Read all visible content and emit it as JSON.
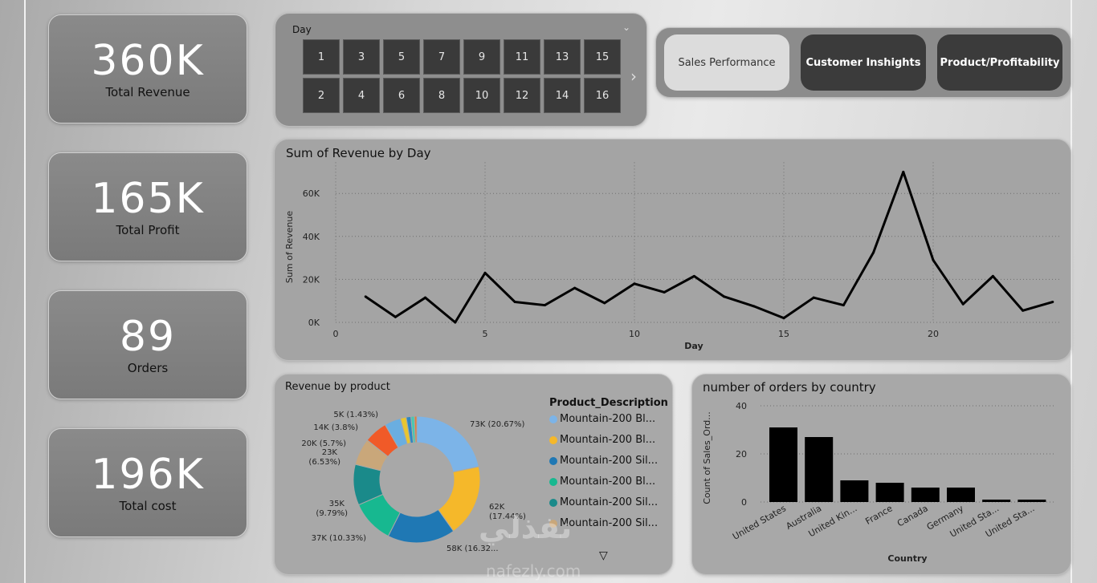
{
  "kpis": [
    {
      "value": "360K",
      "label": "Total Revenue"
    },
    {
      "value": "165K",
      "label": "Total Profit"
    },
    {
      "value": "89",
      "label": "Orders"
    },
    {
      "value": "196K",
      "label": "Total cost"
    }
  ],
  "slicer": {
    "title": "Day",
    "row1": [
      "1",
      "3",
      "5",
      "7",
      "9",
      "11",
      "13",
      "15"
    ],
    "row2": [
      "2",
      "4",
      "6",
      "8",
      "10",
      "12",
      "14",
      "16"
    ]
  },
  "nav": {
    "sales": "Sales Performance",
    "customer": "Customer Inshights",
    "product": "Product/Profitability"
  },
  "watermark": {
    "logo": "نفذلي",
    "url": "nafezly.com"
  },
  "icons": {
    "dropdown": "chevron-down-icon",
    "next": "chevron-right-icon",
    "more": "expand-triangle-icon"
  },
  "colors": {
    "kpi": "#7f7f7f",
    "button_dark": "#3b3b3b",
    "button_active": "#dcdcdc"
  },
  "charts": [
    {
      "chart_data": {
        "type": "line",
        "title": "Sum of Revenue by Day",
        "xlabel": "Day",
        "ylabel": "Sum of Revenue",
        "xlim": [
          0,
          24.3
        ],
        "ylim": [
          0,
          70000
        ],
        "x_ticks": [
          "0",
          "5",
          "10",
          "15",
          "20"
        ],
        "y_ticks": [
          "0K",
          "20K",
          "40K",
          "60K"
        ],
        "grid": true,
        "x": [
          1,
          2,
          3,
          4,
          5,
          6,
          7,
          8,
          9,
          10,
          11,
          12,
          13,
          14,
          15,
          16,
          17,
          18,
          19,
          20,
          21,
          22,
          23,
          24
        ],
        "series": [
          {
            "values": [
              12000,
              2500,
              11500,
              0,
              23000,
              9500,
              8000,
              16000,
              9000,
              18000,
              14000,
              21500,
              12000,
              7500,
              2000,
              11500,
              8000,
              32500,
              70000,
              29000,
              8500,
              21500,
              5500,
              9500
            ],
            "color": "#000000"
          }
        ]
      }
    },
    {
      "chart_data": {
        "type": "pie",
        "title": "Revenue by product",
        "legend_title": "Product_Description",
        "legend": [
          "Mountain-200 Bl...",
          "Mountain-200 Bl...",
          "Mountain-200 Sil...",
          "Mountain-200 Bl...",
          "Mountain-200 Sil...",
          "Mountain-200 Sil..."
        ],
        "slices": [
          {
            "value": 73,
            "label": "73K (20.67%)",
            "color": "#7cb4e8"
          },
          {
            "value": 62,
            "label": "62K (17.44%)",
            "color": "#f5b82a"
          },
          {
            "value": 58,
            "label": "58K (16.32...",
            "color": "#1f78b4"
          },
          {
            "value": 37,
            "label": "37K (10.33%)",
            "color": "#17b890"
          },
          {
            "value": 35,
            "label": "35K (9.79%)",
            "color": "#1a8a8a"
          },
          {
            "value": 23,
            "label": "23K (6.53%)",
            "color": "#c9a77a"
          },
          {
            "value": 20,
            "label": "20K (5.7%)",
            "color": "#f05a28"
          },
          {
            "value": 14,
            "label": "14K (3.8%)",
            "color": "#6aaee0"
          },
          {
            "value": 5,
            "label": "5K (1.43%)",
            "color": "#e8c630"
          },
          {
            "value": 4,
            "label": "",
            "color": "#2e86c1"
          },
          {
            "value": 3,
            "label": "",
            "color": "#48c9b0"
          },
          {
            "value": 2,
            "label": "",
            "color": "#e07b39"
          }
        ]
      }
    },
    {
      "chart_data": {
        "type": "bar",
        "title": "number of orders by country",
        "xlabel": "Country",
        "ylabel": "Count of Sales_Ord...",
        "ylim": [
          0,
          40
        ],
        "y_ticks": [
          "0",
          "20",
          "40"
        ],
        "categories": [
          "United States",
          "Australia",
          "United Kin...",
          "France",
          "Canada",
          "Germany",
          "United Sta...",
          "United Sta..."
        ],
        "values": [
          31,
          27,
          9,
          8,
          6,
          6,
          1,
          1
        ],
        "color": "#000000"
      }
    }
  ]
}
